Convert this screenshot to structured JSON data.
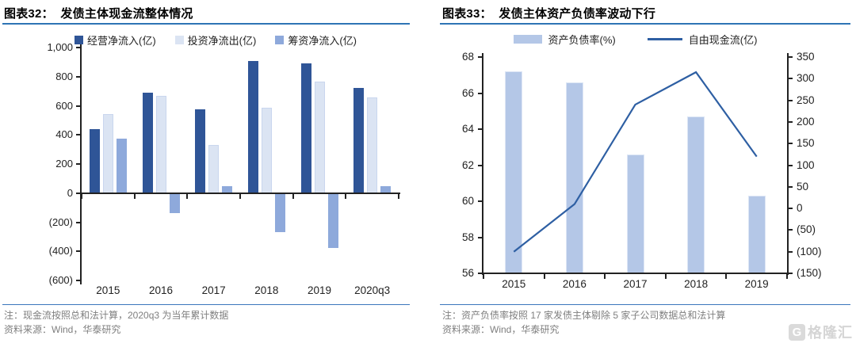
{
  "watermark": {
    "badge": "G",
    "text": "格隆汇"
  },
  "figures": [
    {
      "title": "图表32：  发债主体现金流整体情况",
      "note": "注：现金流按照总和法计算，2020q3 为当年累计数据",
      "source": "资料来源：Wind，华泰研究"
    },
    {
      "title": "图表33：  发债主体资产负债率波动下行",
      "note": "注：资产负债率按照 17 家发债主体剔除 5 家子公司数据总和法计算",
      "source": "资料来源：Wind，华泰研究"
    }
  ],
  "chart_data": [
    {
      "type": "bar",
      "title": "发债主体现金流整体情况",
      "categories": [
        "2015",
        "2016",
        "2017",
        "2018",
        "2019",
        "2020q3"
      ],
      "y_axis": {
        "min": -600,
        "max": 1000,
        "ticks": [
          "1,000",
          "800",
          "600",
          "400",
          "200",
          "0",
          "(200)",
          "(400)",
          "(600)"
        ],
        "tick_values": [
          1000,
          800,
          600,
          400,
          200,
          0,
          -200,
          -400,
          -600
        ]
      },
      "legend_position": "top",
      "grid": false,
      "series": [
        {
          "name": "经营净流入(亿)",
          "color": "#2F5597",
          "values": [
            440,
            690,
            575,
            905,
            890,
            720
          ]
        },
        {
          "name": "投资净流出(亿)",
          "color": "#DBE4F3",
          "values": [
            545,
            670,
            330,
            585,
            765,
            655
          ]
        },
        {
          "name": "筹资净流入(亿)",
          "color": "#8EA9DB",
          "values": [
            375,
            -140,
            50,
            -270,
            -375,
            45
          ]
        }
      ]
    },
    {
      "type": "combo",
      "title": "发债主体资产负债率波动下行",
      "categories": [
        "2015",
        "2016",
        "2017",
        "2018",
        "2019"
      ],
      "left_axis": {
        "min": 56,
        "max": 68,
        "ticks": [
          "68",
          "66",
          "64",
          "62",
          "60",
          "58",
          "56"
        ],
        "tick_values": [
          68,
          66,
          64,
          62,
          60,
          58,
          56
        ]
      },
      "right_axis": {
        "min": -150,
        "max": 350,
        "ticks": [
          "350",
          "300",
          "250",
          "200",
          "150",
          "100",
          "50",
          "0",
          "(50)",
          "(100)",
          "(150)"
        ],
        "tick_values": [
          350,
          300,
          250,
          200,
          150,
          100,
          50,
          0,
          -50,
          -100,
          -150
        ]
      },
      "legend_position": "top",
      "grid": false,
      "series": [
        {
          "name": "资产负债率(%)",
          "type": "bar",
          "axis": "left",
          "color": "#B4C7E7",
          "values": [
            67.2,
            66.6,
            62.6,
            64.7,
            60.3
          ]
        },
        {
          "name": "自由现金流(亿)",
          "type": "line",
          "axis": "right",
          "color": "#2E5FA3",
          "values": [
            -100,
            10,
            240,
            315,
            120
          ]
        }
      ]
    }
  ]
}
